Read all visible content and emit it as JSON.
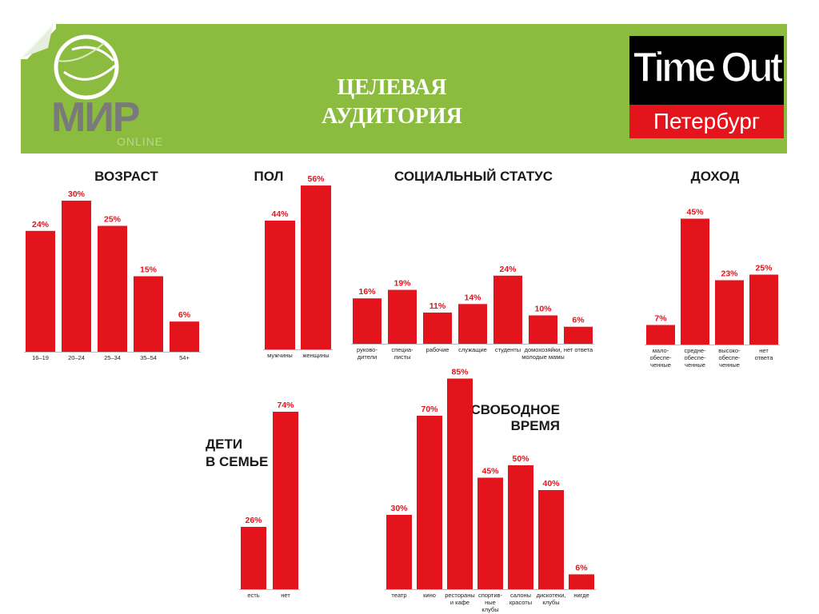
{
  "header": {
    "title_lines": [
      "ЦЕЛЕВАЯ",
      "АУДИТОРИЯ"
    ],
    "logo_left": {
      "name": "МИР",
      "sub": "ONLINE"
    },
    "logo_right": {
      "name": "Time Out",
      "city": "Петербург"
    }
  },
  "colors": {
    "banner": "#8cbc3f",
    "bar": "#e3141b",
    "value_text": "#e3141b",
    "logo_grey": "#7a7a7a"
  },
  "chart_data": [
    {
      "id": "age",
      "type": "bar",
      "title": "ВОЗРАСТ",
      "categories": [
        [
          "16–19"
        ],
        [
          "20–24"
        ],
        [
          "25–34"
        ],
        [
          "35–54"
        ],
        [
          "54+"
        ]
      ],
      "values": [
        24,
        30,
        25,
        15,
        6
      ],
      "labels": [
        "24%",
        "30%",
        "25%",
        "15%",
        "6%"
      ]
    },
    {
      "id": "gender",
      "type": "bar",
      "title": "ПОЛ",
      "categories": [
        [
          "мужчины"
        ],
        [
          "женщины"
        ]
      ],
      "values": [
        44,
        56
      ],
      "labels": [
        "44%",
        "56%"
      ]
    },
    {
      "id": "social",
      "type": "bar",
      "title": "СОЦИАЛЬНЫЙ СТАТУС",
      "categories": [
        [
          "руково-",
          "дители"
        ],
        [
          "специа-",
          "листы"
        ],
        [
          "рабочие"
        ],
        [
          "служащие"
        ],
        [
          "студенты"
        ],
        [
          "домохозяйки,",
          "молодые мамы"
        ],
        [
          "нет ответа"
        ]
      ],
      "values": [
        16,
        19,
        11,
        14,
        24,
        10,
        6
      ],
      "labels": [
        "16%",
        "19%",
        "11%",
        "14%",
        "24%",
        "10%",
        "6%"
      ]
    },
    {
      "id": "income",
      "type": "bar",
      "title": "ДОХОД",
      "categories": [
        [
          "мало-",
          "обеспе-",
          "ченные"
        ],
        [
          "средне-",
          "обеспе-",
          "ченные"
        ],
        [
          "высоко-",
          "обеспе-",
          "ченные"
        ],
        [
          "нет",
          "ответа"
        ]
      ],
      "values": [
        7,
        45,
        23,
        25
      ],
      "labels": [
        "7%",
        "45%",
        "23%",
        "25%"
      ]
    },
    {
      "id": "children",
      "type": "bar",
      "title_lines": [
        "ДЕТИ",
        "В СЕМЬЕ"
      ],
      "categories": [
        [
          "есть"
        ],
        [
          "нет"
        ]
      ],
      "values": [
        26,
        74
      ],
      "labels": [
        "26%",
        "74%"
      ]
    },
    {
      "id": "leisure",
      "type": "bar",
      "title_lines": [
        "СВОБОДНОЕ",
        "ВРЕМЯ"
      ],
      "categories": [
        [
          "театр"
        ],
        [
          "кино"
        ],
        [
          "рестораны",
          "и кафе"
        ],
        [
          "спортив-",
          "ные",
          "клубы"
        ],
        [
          "салоны",
          "красоты"
        ],
        [
          "дискотеки,",
          "клубы"
        ],
        [
          "нигде"
        ]
      ],
      "values": [
        30,
        70,
        85,
        45,
        50,
        40,
        6
      ],
      "labels": [
        "30%",
        "70%",
        "85%",
        "45%",
        "50%",
        "40%",
        "6%"
      ]
    }
  ]
}
